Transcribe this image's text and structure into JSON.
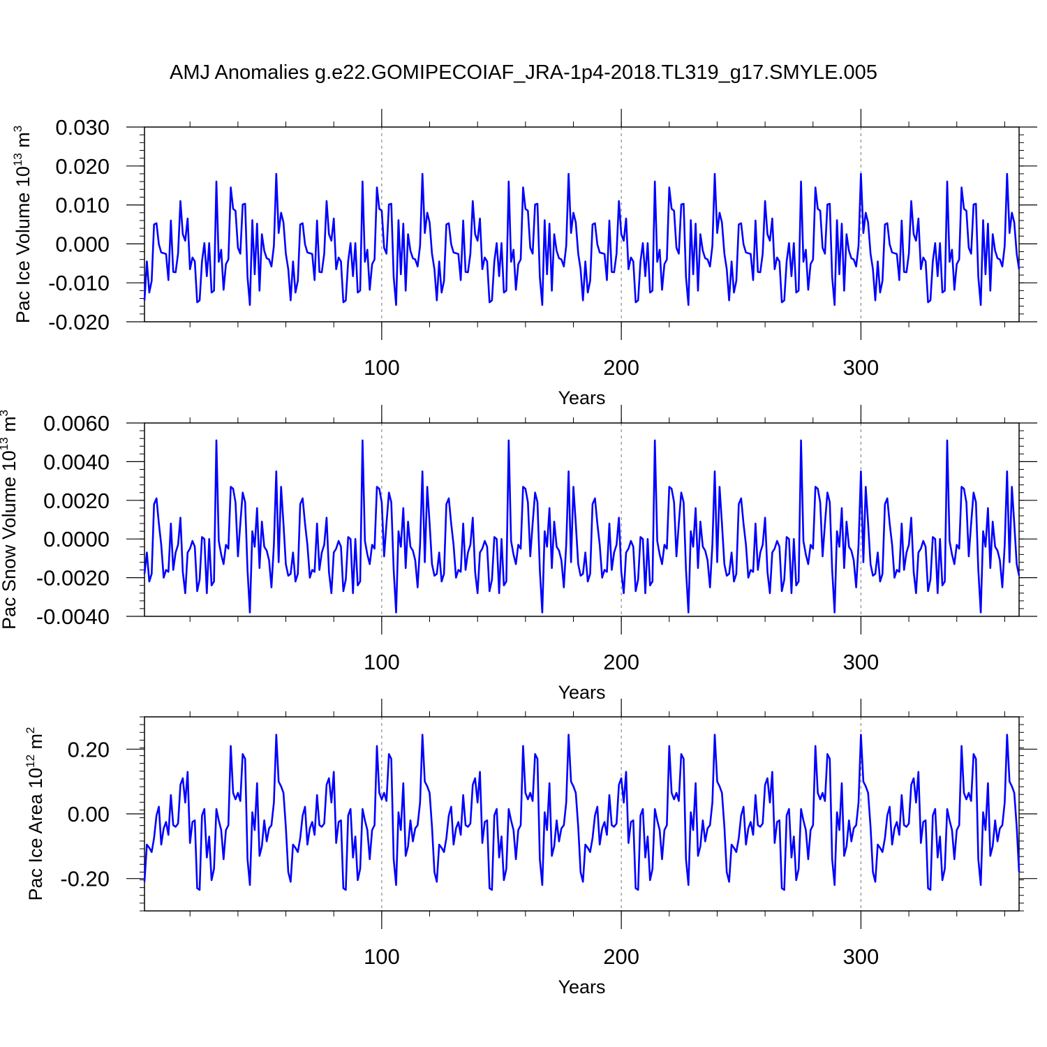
{
  "title": "AMJ Anomalies g.e22.GOMIPECOIAF_JRA-1p4-2018.TL319_g17.SMYLE.005",
  "line_color": "#0000ff",
  "chart_data": [
    {
      "type": "line",
      "ylabel": "Pac Ice Volume 10",
      "ylabel_exp": "13",
      "ylabel_unit": " m",
      "ylabel_unit_exp": "3",
      "xlabel": "Years",
      "xlim": [
        1,
        366
      ],
      "ylim": [
        -0.02,
        0.03
      ],
      "yticks": [
        -0.02,
        -0.01,
        0.0,
        0.01,
        0.02,
        0.03
      ],
      "ytick_labels": [
        "-0.020",
        "-0.010",
        "0.000",
        "0.010",
        "0.020",
        "0.030"
      ],
      "xticks": [
        100,
        200,
        300
      ],
      "xtick_labels": [
        "100",
        "200",
        "300"
      ],
      "ref_lines_x": [
        100,
        200,
        300
      ],
      "period": 61,
      "pattern": [
        -0.0145,
        -0.0045,
        -0.0125,
        -0.0095,
        0.005,
        0.0053,
        -0.0001,
        -0.0022,
        -0.0024,
        -0.0026,
        -0.0093,
        0.006,
        -0.0072,
        -0.0073,
        -0.0025,
        0.011,
        0.0025,
        0.0008,
        0.0065,
        -0.0065,
        -0.0035,
        -0.0045,
        -0.015,
        -0.0145,
        -0.0045,
        0.0002,
        -0.0083,
        0.0002,
        -0.0125,
        -0.012,
        0.016,
        -0.0046,
        -0.0015,
        -0.0118,
        -0.0052,
        -0.004,
        0.0145,
        0.009,
        0.0085,
        -0.001,
        -0.0025,
        0.0101,
        0.0103,
        -0.0085,
        -0.0157,
        0.0061,
        -0.0078,
        0.0052,
        -0.012,
        0.0025,
        -0.0018,
        -0.0037,
        -0.004,
        -0.0058,
        -0.0005,
        0.018,
        0.0028,
        0.008,
        0.0055,
        -0.0025,
        -0.0065
      ],
      "count": 366
    },
    {
      "type": "line",
      "ylabel": "Pac Snow Volume 10",
      "ylabel_exp": "13",
      "ylabel_unit": " m",
      "ylabel_unit_exp": "3",
      "xlabel": "Years",
      "xlim": [
        1,
        366
      ],
      "ylim": [
        -0.004,
        0.006
      ],
      "yticks": [
        -0.004,
        -0.002,
        0.0,
        0.002,
        0.004,
        0.006
      ],
      "ytick_labels": [
        "-0.0040",
        "-0.0020",
        "0.0000",
        "0.0020",
        "0.0040",
        "0.0060"
      ],
      "xticks": [
        100,
        200,
        300
      ],
      "xtick_labels": [
        "100",
        "200",
        "300"
      ],
      "ref_lines_x": [
        100,
        200,
        300
      ],
      "period": 61,
      "pattern": [
        -0.0018,
        -0.0007,
        -0.0022,
        -0.0018,
        0.0018,
        0.0021,
        0.0008,
        -0.0003,
        -0.002,
        -0.0016,
        -0.0017,
        0.0008,
        -0.0016,
        -0.0007,
        -0.0003,
        0.0011,
        -0.0017,
        -0.0028,
        -0.0007,
        -0.0005,
        -0.0001,
        -0.0004,
        -0.0027,
        -0.0021,
        0.0001,
        0.0,
        -0.0028,
        0.0,
        -0.0024,
        -0.0022,
        0.0051,
        -0.0001,
        -0.0008,
        -0.0013,
        -0.0003,
        -0.0005,
        0.0027,
        0.0026,
        0.0019,
        -0.0009,
        0.0008,
        0.0024,
        0.0019,
        -0.0016,
        -0.0038,
        0.0004,
        -0.0004,
        0.0016,
        -0.0015,
        0.0009,
        -0.0004,
        -0.0006,
        -0.0011,
        -0.0025,
        -0.0003,
        0.0035,
        -0.0012,
        0.0027,
        0.0008,
        -0.0013,
        -0.0019
      ],
      "count": 366
    },
    {
      "type": "line",
      "ylabel": "Pac Ice Area 10",
      "ylabel_exp": "12",
      "ylabel_unit": " m",
      "ylabel_unit_exp": "2",
      "xlabel": "Years",
      "xlim": [
        1,
        366
      ],
      "ylim": [
        -0.3,
        0.3
      ],
      "yticks": [
        -0.2,
        0.0,
        0.2
      ],
      "ytick_labels": [
        "-0.20",
        "0.00",
        "0.20"
      ],
      "xticks": [
        100,
        200,
        300
      ],
      "xtick_labels": [
        "100",
        "200",
        "300"
      ],
      "ref_lines_x": [
        100,
        200,
        300
      ],
      "period": 61,
      "pattern": [
        -0.21,
        -0.095,
        -0.105,
        -0.118,
        -0.075,
        -0.005,
        0.022,
        -0.095,
        -0.045,
        -0.025,
        -0.065,
        0.058,
        -0.035,
        -0.04,
        -0.03,
        0.09,
        0.11,
        0.035,
        0.13,
        -0.09,
        -0.025,
        -0.02,
        -0.23,
        -0.235,
        -0.005,
        0.015,
        -0.135,
        -0.07,
        -0.205,
        -0.17,
        0.015,
        -0.02,
        -0.05,
        -0.14,
        -0.05,
        -0.035,
        0.21,
        0.065,
        0.045,
        0.065,
        0.04,
        0.185,
        0.17,
        -0.14,
        -0.22,
        0.005,
        -0.05,
        0.095,
        -0.13,
        -0.1,
        -0.02,
        -0.085,
        -0.045,
        -0.035,
        0.035,
        0.245,
        0.1,
        0.085,
        0.065,
        -0.04,
        -0.18
      ],
      "count": 366
    }
  ]
}
